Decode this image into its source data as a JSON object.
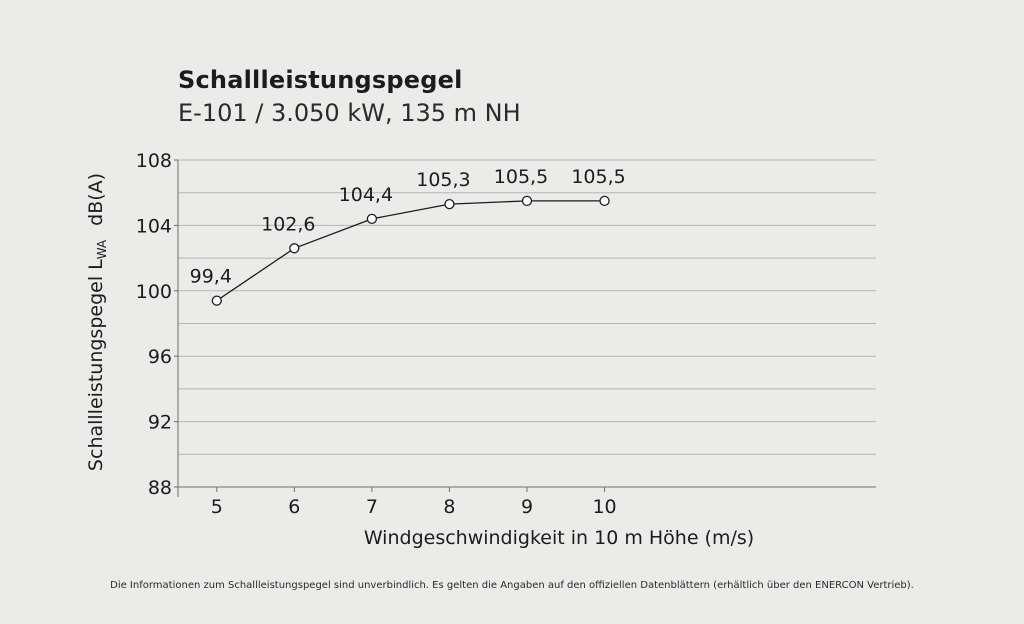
{
  "header": {
    "title": "Schallleistungspegel",
    "subtitle": "E-101 / 3.050 kW, 135 m NH"
  },
  "footnote": "Die Informationen zum Schallleistungspegel sind unverbindlich. Es gelten die Angaben auf den offiziellen Datenblättern (erhältlich über den ENERCON Vertrieb).",
  "chart_data": {
    "type": "line",
    "title": "Schallleistungspegel",
    "subtitle": "E-101 / 3.050 kW, 135 m NH",
    "xlabel": "Windgeschwindigkeit in 10 m Höhe (m/s)",
    "ylabel": "Schallleistungspegel L",
    "ylabel_subscript": "WA",
    "ylabel_unit": "dB(A)",
    "x": [
      5,
      6,
      7,
      8,
      9,
      10
    ],
    "x_tick_labels": [
      "5",
      "6",
      "7",
      "8",
      "9",
      "10"
    ],
    "y": [
      99.4,
      102.6,
      104.4,
      105.3,
      105.5,
      105.5
    ],
    "data_labels": [
      "99,4",
      "102,6",
      "104,4",
      "105,3",
      "105,5",
      "105,5"
    ],
    "xlim": [
      4.5,
      13.5
    ],
    "ylim": [
      88,
      108
    ],
    "y_ticks": [
      88,
      92,
      96,
      100,
      104,
      108
    ],
    "y_tick_labels": [
      "88",
      "92",
      "96",
      "100",
      "104",
      "108"
    ],
    "y_gridlines": [
      88,
      90,
      92,
      94,
      96,
      98,
      100,
      102,
      104,
      106,
      108
    ],
    "grid": true,
    "legend": "none",
    "colors": {
      "line": "#1c1c1c",
      "marker_fill": "#ffffff",
      "grid": "#b5b5b5",
      "background": "#ebebea"
    }
  }
}
